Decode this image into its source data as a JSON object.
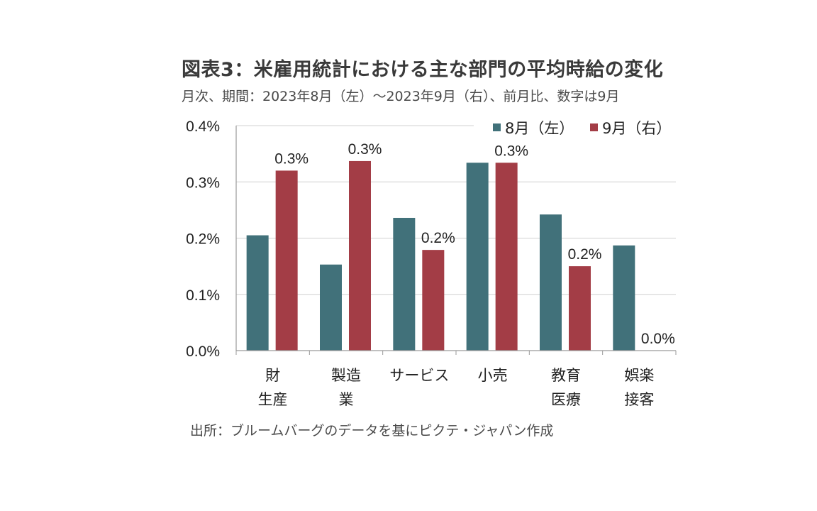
{
  "title": "図表3：米雇用統計における主な部門の平均時給の変化",
  "subtitle": "月次、期間：2023年8月（左）～2023年9月（右）、前月比、数字は9月",
  "source": "出所：ブルームバーグのデータを基にピクテ・ジャパン作成",
  "chart_data": {
    "type": "bar",
    "categories": [
      [
        "財",
        "生産"
      ],
      [
        "製造",
        "業"
      ],
      [
        "サービス"
      ],
      [
        "小売"
      ],
      [
        "教育",
        "医療"
      ],
      [
        "娯楽",
        "接客"
      ]
    ],
    "series": [
      {
        "name": "8月（左）",
        "color": "#41717a",
        "values": [
          0.205,
          0.153,
          0.236,
          0.334,
          0.242,
          0.187
        ]
      },
      {
        "name": "9月（右）",
        "color": "#a33d46",
        "values": [
          0.32,
          0.337,
          0.179,
          0.334,
          0.15,
          0.0
        ]
      }
    ],
    "data_labels": {
      "series_index": 1,
      "labels": [
        "0.3%",
        "0.3%",
        "0.2%",
        "0.3%",
        "0.2%",
        "0.0%"
      ]
    },
    "y_ticks": [
      0.0,
      0.1,
      0.2,
      0.3,
      0.4
    ],
    "y_tick_labels": [
      "0.0%",
      "0.1%",
      "0.2%",
      "0.3%",
      "0.4%"
    ],
    "ylim": [
      0,
      0.4
    ],
    "grid": true,
    "legend_position": "top-right",
    "xlabel": "",
    "ylabel": ""
  }
}
